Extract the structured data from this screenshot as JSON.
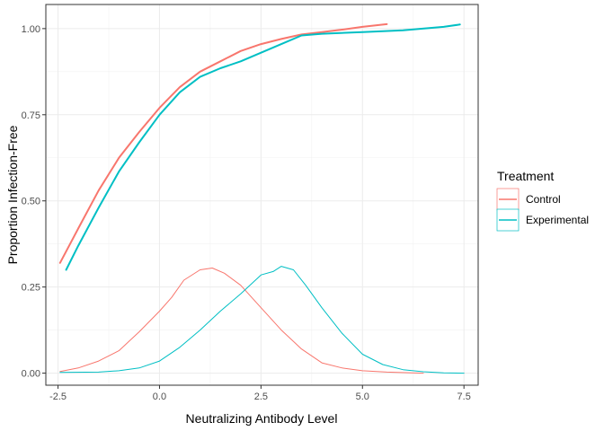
{
  "chart_data": {
    "type": "line",
    "xlabel": "Neutralizing Antibody Level",
    "ylabel": "Proportion Infection-Free",
    "xlim": [
      -2.8,
      7.85
    ],
    "ylim": [
      -0.035,
      1.07
    ],
    "x_ticks": [
      -2.5,
      0.0,
      2.5,
      5.0,
      7.5
    ],
    "x_tick_labels": [
      "-2.5",
      "0.0",
      "2.5",
      "5.0",
      "7.5"
    ],
    "y_ticks": [
      0.0,
      0.25,
      0.5,
      0.75,
      1.0
    ],
    "y_tick_labels": [
      "0.00",
      "0.25",
      "0.50",
      "0.75",
      "1.00"
    ],
    "grid": true,
    "legend": {
      "title": "Treatment",
      "placement": "right",
      "entries": [
        "Control",
        "Experimental"
      ]
    },
    "colors": {
      "Control": "#F8766D",
      "Experimental": "#00BFC4"
    },
    "series": [
      {
        "name": "Control",
        "kind": "cumulative",
        "points": [
          [
            -2.45,
            0.32
          ],
          [
            -2.0,
            0.42
          ],
          [
            -1.5,
            0.53
          ],
          [
            -1.0,
            0.625
          ],
          [
            -0.5,
            0.7
          ],
          [
            0.0,
            0.77
          ],
          [
            0.5,
            0.83
          ],
          [
            1.0,
            0.875
          ],
          [
            1.5,
            0.905
          ],
          [
            2.0,
            0.935
          ],
          [
            2.5,
            0.955
          ],
          [
            3.0,
            0.97
          ],
          [
            3.5,
            0.983
          ],
          [
            4.0,
            0.99
          ],
          [
            4.5,
            0.997
          ],
          [
            5.0,
            1.005
          ],
          [
            5.6,
            1.013
          ]
        ]
      },
      {
        "name": "Control",
        "kind": "density",
        "points": [
          [
            -2.45,
            0.005
          ],
          [
            -2.0,
            0.015
          ],
          [
            -1.5,
            0.035
          ],
          [
            -1.0,
            0.065
          ],
          [
            -0.5,
            0.12
          ],
          [
            0.0,
            0.18
          ],
          [
            0.3,
            0.22
          ],
          [
            0.6,
            0.27
          ],
          [
            1.0,
            0.3
          ],
          [
            1.3,
            0.305
          ],
          [
            1.6,
            0.29
          ],
          [
            2.0,
            0.255
          ],
          [
            2.5,
            0.19
          ],
          [
            3.0,
            0.125
          ],
          [
            3.5,
            0.07
          ],
          [
            4.0,
            0.03
          ],
          [
            4.5,
            0.015
          ],
          [
            5.0,
            0.007
          ],
          [
            5.6,
            0.003
          ],
          [
            6.5,
            0.0
          ]
        ]
      },
      {
        "name": "Experimental",
        "kind": "cumulative",
        "points": [
          [
            -2.3,
            0.3
          ],
          [
            -2.0,
            0.37
          ],
          [
            -1.5,
            0.48
          ],
          [
            -1.0,
            0.585
          ],
          [
            -0.5,
            0.67
          ],
          [
            0.0,
            0.75
          ],
          [
            0.5,
            0.815
          ],
          [
            1.0,
            0.86
          ],
          [
            1.5,
            0.885
          ],
          [
            2.0,
            0.905
          ],
          [
            2.5,
            0.93
          ],
          [
            3.0,
            0.955
          ],
          [
            3.5,
            0.98
          ],
          [
            4.0,
            0.985
          ],
          [
            5.0,
            0.99
          ],
          [
            6.0,
            0.995
          ],
          [
            7.0,
            1.005
          ],
          [
            7.4,
            1.012
          ]
        ]
      },
      {
        "name": "Experimental",
        "kind": "density",
        "points": [
          [
            -2.45,
            0.002
          ],
          [
            -1.5,
            0.003
          ],
          [
            -1.0,
            0.007
          ],
          [
            -0.5,
            0.015
          ],
          [
            0.0,
            0.035
          ],
          [
            0.5,
            0.075
          ],
          [
            1.0,
            0.125
          ],
          [
            1.5,
            0.18
          ],
          [
            2.0,
            0.23
          ],
          [
            2.5,
            0.285
          ],
          [
            2.8,
            0.295
          ],
          [
            3.0,
            0.31
          ],
          [
            3.3,
            0.3
          ],
          [
            3.6,
            0.255
          ],
          [
            4.0,
            0.19
          ],
          [
            4.5,
            0.115
          ],
          [
            5.0,
            0.055
          ],
          [
            5.5,
            0.025
          ],
          [
            6.0,
            0.01
          ],
          [
            6.5,
            0.004
          ],
          [
            7.0,
            0.001
          ],
          [
            7.5,
            0.0
          ]
        ]
      }
    ]
  }
}
